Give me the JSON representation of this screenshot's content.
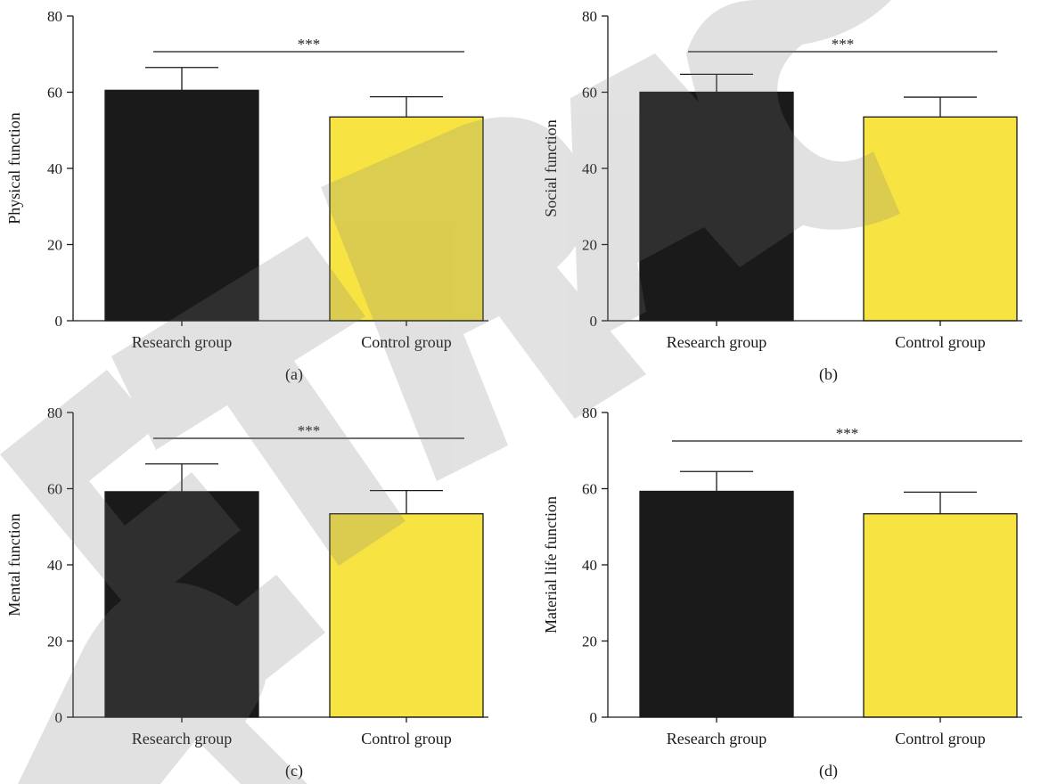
{
  "chart_data": [
    {
      "type": "bar",
      "panel_label": "(a)",
      "ylabel": "Physical function",
      "xlabel": "",
      "categories": [
        "Research group",
        "Control group"
      ],
      "values": [
        60.5,
        53.5
      ],
      "errors": [
        6.0,
        5.3
      ],
      "ylim": [
        0,
        80
      ],
      "yticks": [
        0,
        20,
        40,
        60,
        80
      ],
      "significance": "***",
      "colors": [
        "#1a1a1a",
        "#f7e443"
      ]
    },
    {
      "type": "bar",
      "panel_label": "(b)",
      "ylabel": "Social function",
      "xlabel": "",
      "categories": [
        "Research group",
        "Control group"
      ],
      "values": [
        60.0,
        53.5
      ],
      "errors": [
        4.7,
        5.2
      ],
      "ylim": [
        0,
        80
      ],
      "yticks": [
        0,
        20,
        40,
        60,
        80
      ],
      "significance": "***",
      "colors": [
        "#1a1a1a",
        "#f7e443"
      ]
    },
    {
      "type": "bar",
      "panel_label": "(c)",
      "ylabel": "Mental function",
      "xlabel": "",
      "categories": [
        "Research group",
        "Control group"
      ],
      "values": [
        59.2,
        53.4
      ],
      "errors": [
        7.3,
        6.1
      ],
      "ylim": [
        0,
        80
      ],
      "yticks": [
        0,
        20,
        40,
        60,
        80
      ],
      "significance": "***",
      "colors": [
        "#1a1a1a",
        "#f7e443"
      ]
    },
    {
      "type": "bar",
      "panel_label": "(d)",
      "ylabel": "Material life function",
      "xlabel": "",
      "categories": [
        "Research group",
        "Control group"
      ],
      "values": [
        59.3,
        53.4
      ],
      "errors": [
        5.2,
        5.7
      ],
      "ylim": [
        0,
        80
      ],
      "yticks": [
        0,
        20,
        40,
        60,
        80
      ],
      "significance": "***",
      "colors": [
        "#1a1a1a",
        "#f7e443"
      ]
    }
  ],
  "watermark": "RETRACTED"
}
